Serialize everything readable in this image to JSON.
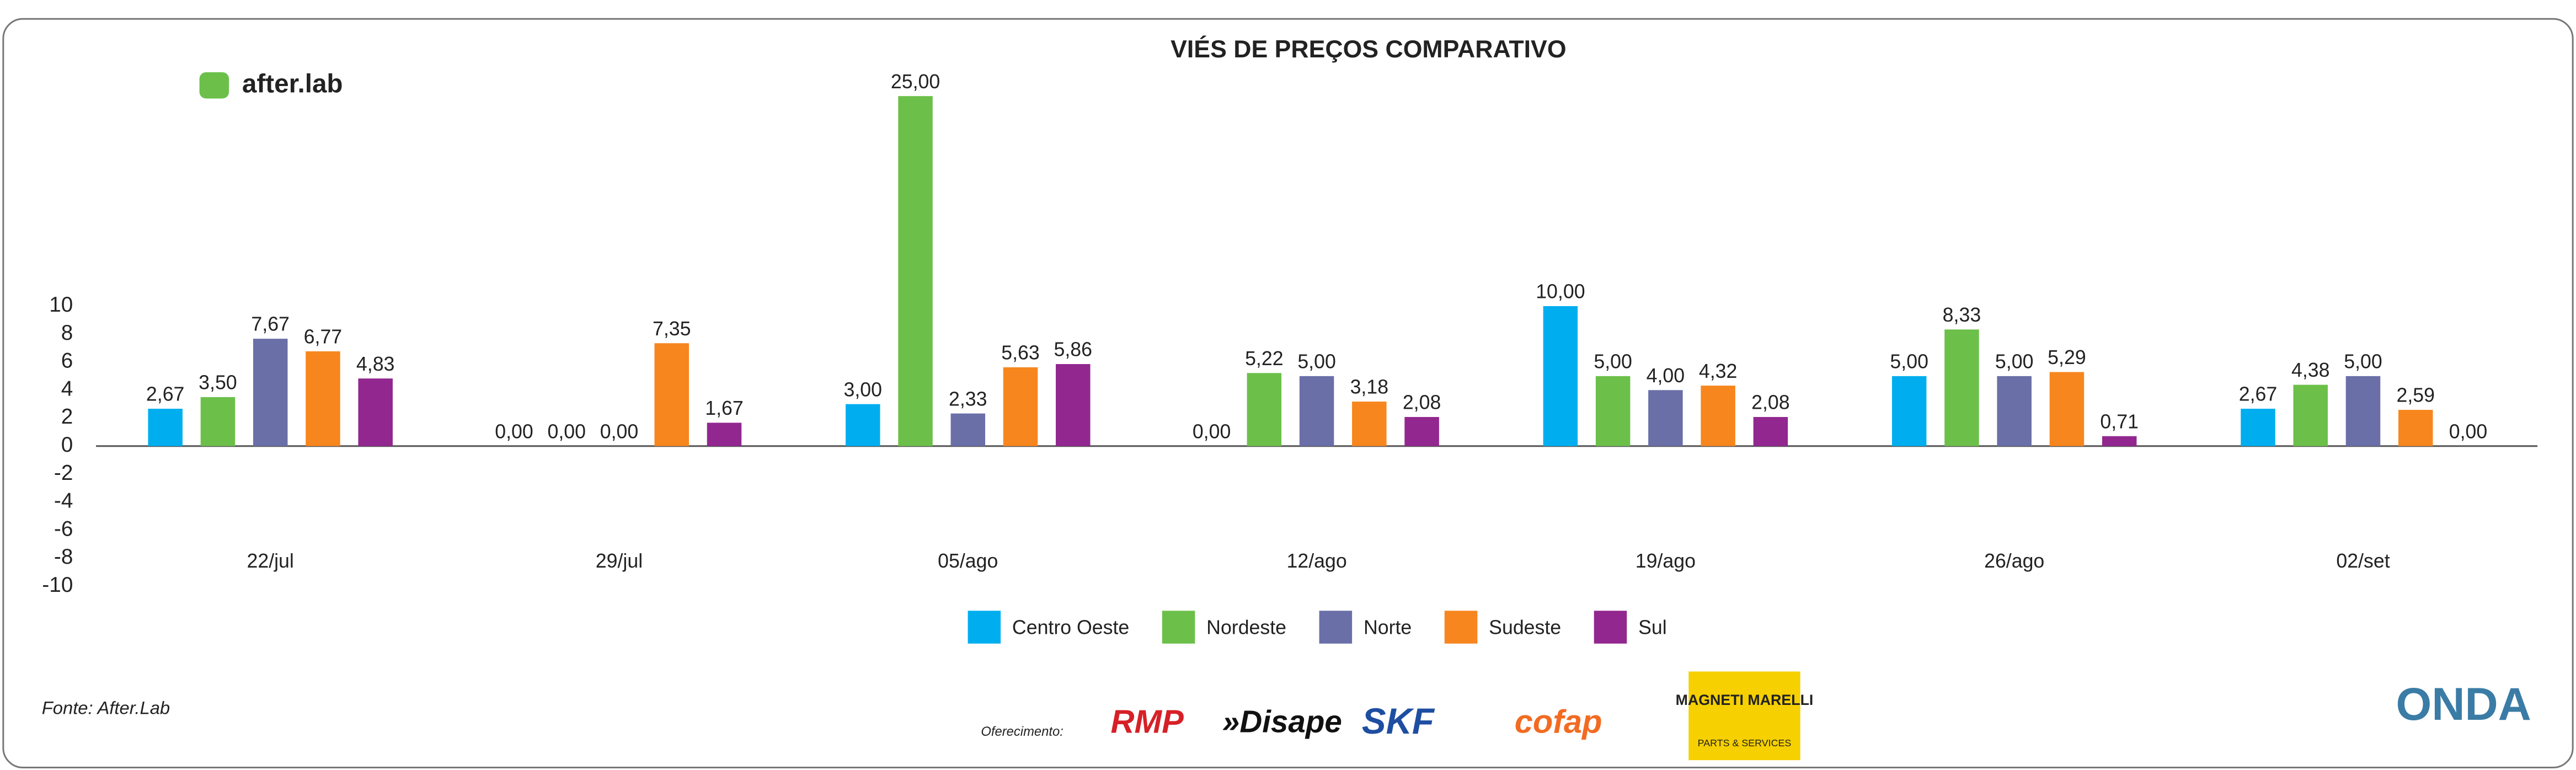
{
  "chart_data": {
    "type": "bar",
    "title": "VIÉS DE PREÇOS COMPARATIVO",
    "categories": [
      "22/jul",
      "29/jul",
      "05/ago",
      "12/ago",
      "19/ago",
      "26/ago",
      "02/set"
    ],
    "series": [
      {
        "name": "Centro Oeste",
        "color": "#00aeef",
        "values": [
          2.67,
          0,
          3,
          0,
          10,
          5,
          2.67
        ],
        "value_labels": [
          "2,67",
          "0,00",
          "3,00",
          "0,00",
          "10,00",
          "5,00",
          "2,67"
        ]
      },
      {
        "name": "Nordeste",
        "color": "#6cc04a",
        "values": [
          3.5,
          0,
          25,
          5.22,
          5,
          8.33,
          4.38
        ],
        "value_labels": [
          "3,50",
          "0,00",
          "25,00",
          "5,22",
          "5,00",
          "8,33",
          "4,38"
        ]
      },
      {
        "name": "Norte",
        "color": "#6a6fa8",
        "values": [
          7.67,
          0,
          2.33,
          5,
          4,
          5,
          5
        ],
        "value_labels": [
          "7,67",
          "0,00",
          "2,33",
          "5,00",
          "4,00",
          "5,00",
          "5,00"
        ]
      },
      {
        "name": "Sudeste",
        "color": "#f7861e",
        "values": [
          6.77,
          7.35,
          5.63,
          3.18,
          4.32,
          5.29,
          2.59
        ],
        "value_labels": [
          "6,77",
          "7,35",
          "5,63",
          "3,18",
          "4,32",
          "5,29",
          "2,59"
        ]
      },
      {
        "name": "Sul",
        "color": "#92278f",
        "values": [
          4.83,
          1.67,
          5.86,
          2.08,
          2.08,
          0.71,
          0
        ],
        "value_labels": [
          "4,83",
          "1,67",
          "5,86",
          "2,08",
          "2,08",
          "0,71",
          "0,00"
        ]
      }
    ],
    "ylim": [
      -10,
      26
    ],
    "yticks": [
      -10,
      -8,
      -6,
      -4,
      -2,
      0,
      2,
      4,
      6,
      8,
      10
    ],
    "grid": false,
    "legend": "bottom",
    "source": "Fonte: After.Lab"
  },
  "branding": {
    "brand": "after.lab",
    "sponsor_label": "Oferecimento:",
    "sponsors": [
      "RMP",
      "»Disape",
      "SKF",
      "cofap",
      "MAGNETI MARELLI",
      "PARTS & SERVICES"
    ],
    "partner": "ONDA"
  }
}
